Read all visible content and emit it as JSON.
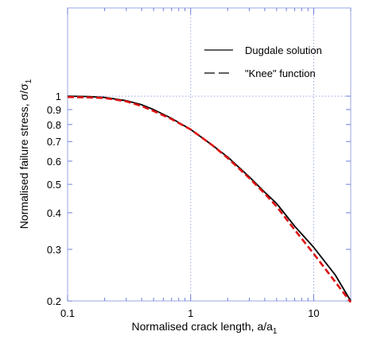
{
  "chart_data": {
    "type": "line",
    "x_scale": "log",
    "y_scale": "log",
    "xlim": [
      0.1,
      20
    ],
    "ylim": [
      0.2,
      2
    ],
    "xlabel": "Normalised crack length, a/a",
    "xlabel_sub": "1",
    "ylabel": "Normalised failure stress, σ/σ",
    "ylabel_sub": "1",
    "x_ticks": [
      {
        "value": 0.1,
        "label": "0.1"
      },
      {
        "value": 1,
        "label": "1"
      },
      {
        "value": 10,
        "label": "10"
      }
    ],
    "y_ticks": [
      {
        "value": 1,
        "label": "1"
      },
      {
        "value": 0.9,
        "label": "0.9"
      },
      {
        "value": 0.8,
        "label": "0.8"
      },
      {
        "value": 0.7,
        "label": "0.7"
      },
      {
        "value": 0.6,
        "label": "0.6"
      },
      {
        "value": 0.5,
        "label": "0.5"
      },
      {
        "value": 0.4,
        "label": "0.4"
      },
      {
        "value": 0.3,
        "label": "0.3"
      },
      {
        "value": 0.2,
        "label": "0.2"
      }
    ],
    "grid": "dotted lines at x=1, x=10 and y=1",
    "legend_position": "top-right",
    "series": [
      {
        "name": "Dugdale solution",
        "color": "#000000",
        "style": "solid",
        "x": [
          0.1,
          0.15,
          0.2,
          0.3,
          0.4,
          0.5,
          0.7,
          1.0,
          1.5,
          2.0,
          3.0,
          4.0,
          5.0,
          7.0,
          10.0,
          15.0,
          20.0
        ],
        "y": [
          1.0,
          0.997,
          0.99,
          0.965,
          0.935,
          0.9,
          0.84,
          0.77,
          0.68,
          0.62,
          0.53,
          0.47,
          0.43,
          0.36,
          0.305,
          0.245,
          0.2
        ]
      },
      {
        "name": "\"Knee\" function",
        "color": "#dd1111",
        "style": "dashed",
        "x": [
          0.1,
          0.15,
          0.2,
          0.3,
          0.4,
          0.5,
          0.7,
          1.0,
          1.5,
          2.0,
          3.0,
          4.0,
          5.0,
          7.0,
          10.0,
          15.0,
          20.0
        ],
        "y": [
          0.993,
          0.99,
          0.985,
          0.96,
          0.925,
          0.89,
          0.835,
          0.77,
          0.68,
          0.615,
          0.525,
          0.465,
          0.42,
          0.35,
          0.29,
          0.232,
          0.198
        ]
      }
    ]
  }
}
